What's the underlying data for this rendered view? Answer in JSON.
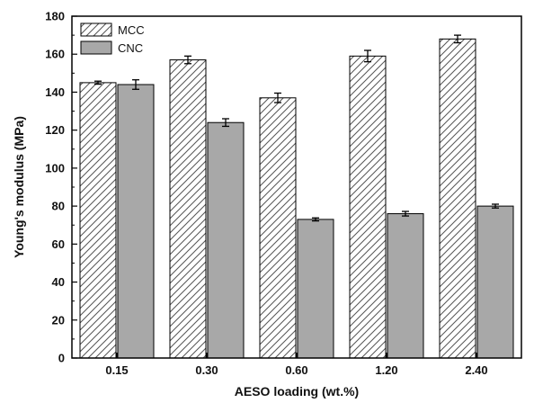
{
  "chart_data": {
    "type": "bar",
    "title": "",
    "xlabel": "AESO loading (wt.%)",
    "ylabel": "Young's modulus (MPa)",
    "ylim": [
      0,
      180
    ],
    "yticks": [
      0,
      20,
      40,
      60,
      80,
      100,
      120,
      140,
      160,
      180
    ],
    "categories": [
      "0.15",
      "0.30",
      "0.60",
      "1.20",
      "2.40"
    ],
    "legend_position": "top-left",
    "grid": false,
    "series": [
      {
        "name": "MCC",
        "values": [
          145,
          157,
          137,
          159,
          168
        ],
        "errors": [
          0.8,
          2,
          2.5,
          3,
          2
        ],
        "fill": "hatched",
        "color": "#ffffff"
      },
      {
        "name": "CNC",
        "values": [
          144,
          124,
          73,
          76,
          80
        ],
        "errors": [
          2.5,
          2,
          0.8,
          1.2,
          1
        ],
        "fill": "solid",
        "color": "#a8a8a8"
      }
    ]
  }
}
